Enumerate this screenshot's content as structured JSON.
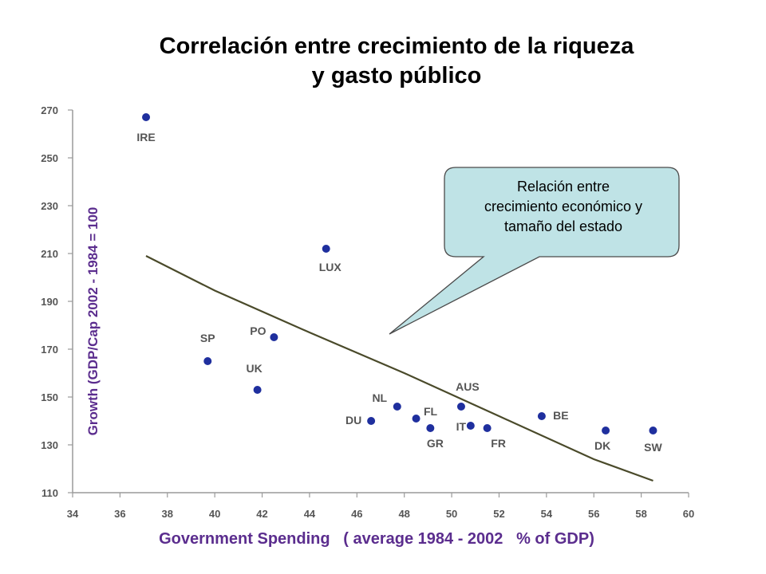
{
  "title": {
    "line1": "Correlación entre crecimiento de la riqueza",
    "line2": "y gasto público"
  },
  "callout": {
    "line1": "Relación entre",
    "line2": "crecimiento económico y",
    "line3": "tamaño del estado",
    "fill": "#bfe3e6",
    "stroke": "#4a4a4a"
  },
  "chart_data": {
    "type": "scatter",
    "xlabel": "Government Spending   ( average 1984 - 2002   % of GDP)",
    "ylabel": "Growth (GDP/Cap 2002 - 1984 = 100",
    "xlim": [
      34,
      60
    ],
    "ylim": [
      110,
      270
    ],
    "x_ticks": [
      "34",
      "36",
      "38",
      "40",
      "42",
      "44",
      "46",
      "48",
      "50",
      "52",
      "54",
      "56",
      "58",
      "60"
    ],
    "y_ticks": [
      "110",
      "130",
      "150",
      "170",
      "190",
      "210",
      "230",
      "250",
      "270"
    ],
    "grid": false,
    "point_color": "#1f2f9e",
    "label_color": "#555555",
    "axis_label_color": "#5b2d8e",
    "points": [
      {
        "label": "IRE",
        "x": 37.1,
        "y": 267
      },
      {
        "label": "LUX",
        "x": 44.7,
        "y": 212
      },
      {
        "label": "PO",
        "x": 42.5,
        "y": 175
      },
      {
        "label": "SP",
        "x": 39.7,
        "y": 165
      },
      {
        "label": "UK",
        "x": 41.8,
        "y": 153
      },
      {
        "label": "NL",
        "x": 47.7,
        "y": 146
      },
      {
        "label": "DU",
        "x": 46.6,
        "y": 140
      },
      {
        "label": "FL",
        "x": 48.5,
        "y": 141
      },
      {
        "label": "GR",
        "x": 49.1,
        "y": 137
      },
      {
        "label": "AUS",
        "x": 50.4,
        "y": 146
      },
      {
        "label": "IT",
        "x": 50.8,
        "y": 138
      },
      {
        "label": "FR",
        "x": 51.5,
        "y": 137
      },
      {
        "label": "BE",
        "x": 53.8,
        "y": 142
      },
      {
        "label": "DK",
        "x": 56.5,
        "y": 136
      },
      {
        "label": "SW",
        "x": 58.5,
        "y": 136
      }
    ],
    "trendline": {
      "color": "#4a4a2a",
      "points": [
        [
          37.1,
          209
        ],
        [
          40,
          194.5
        ],
        [
          44,
          177
        ],
        [
          48,
          160
        ],
        [
          52,
          142
        ],
        [
          56,
          124
        ],
        [
          58.5,
          115
        ]
      ]
    }
  }
}
